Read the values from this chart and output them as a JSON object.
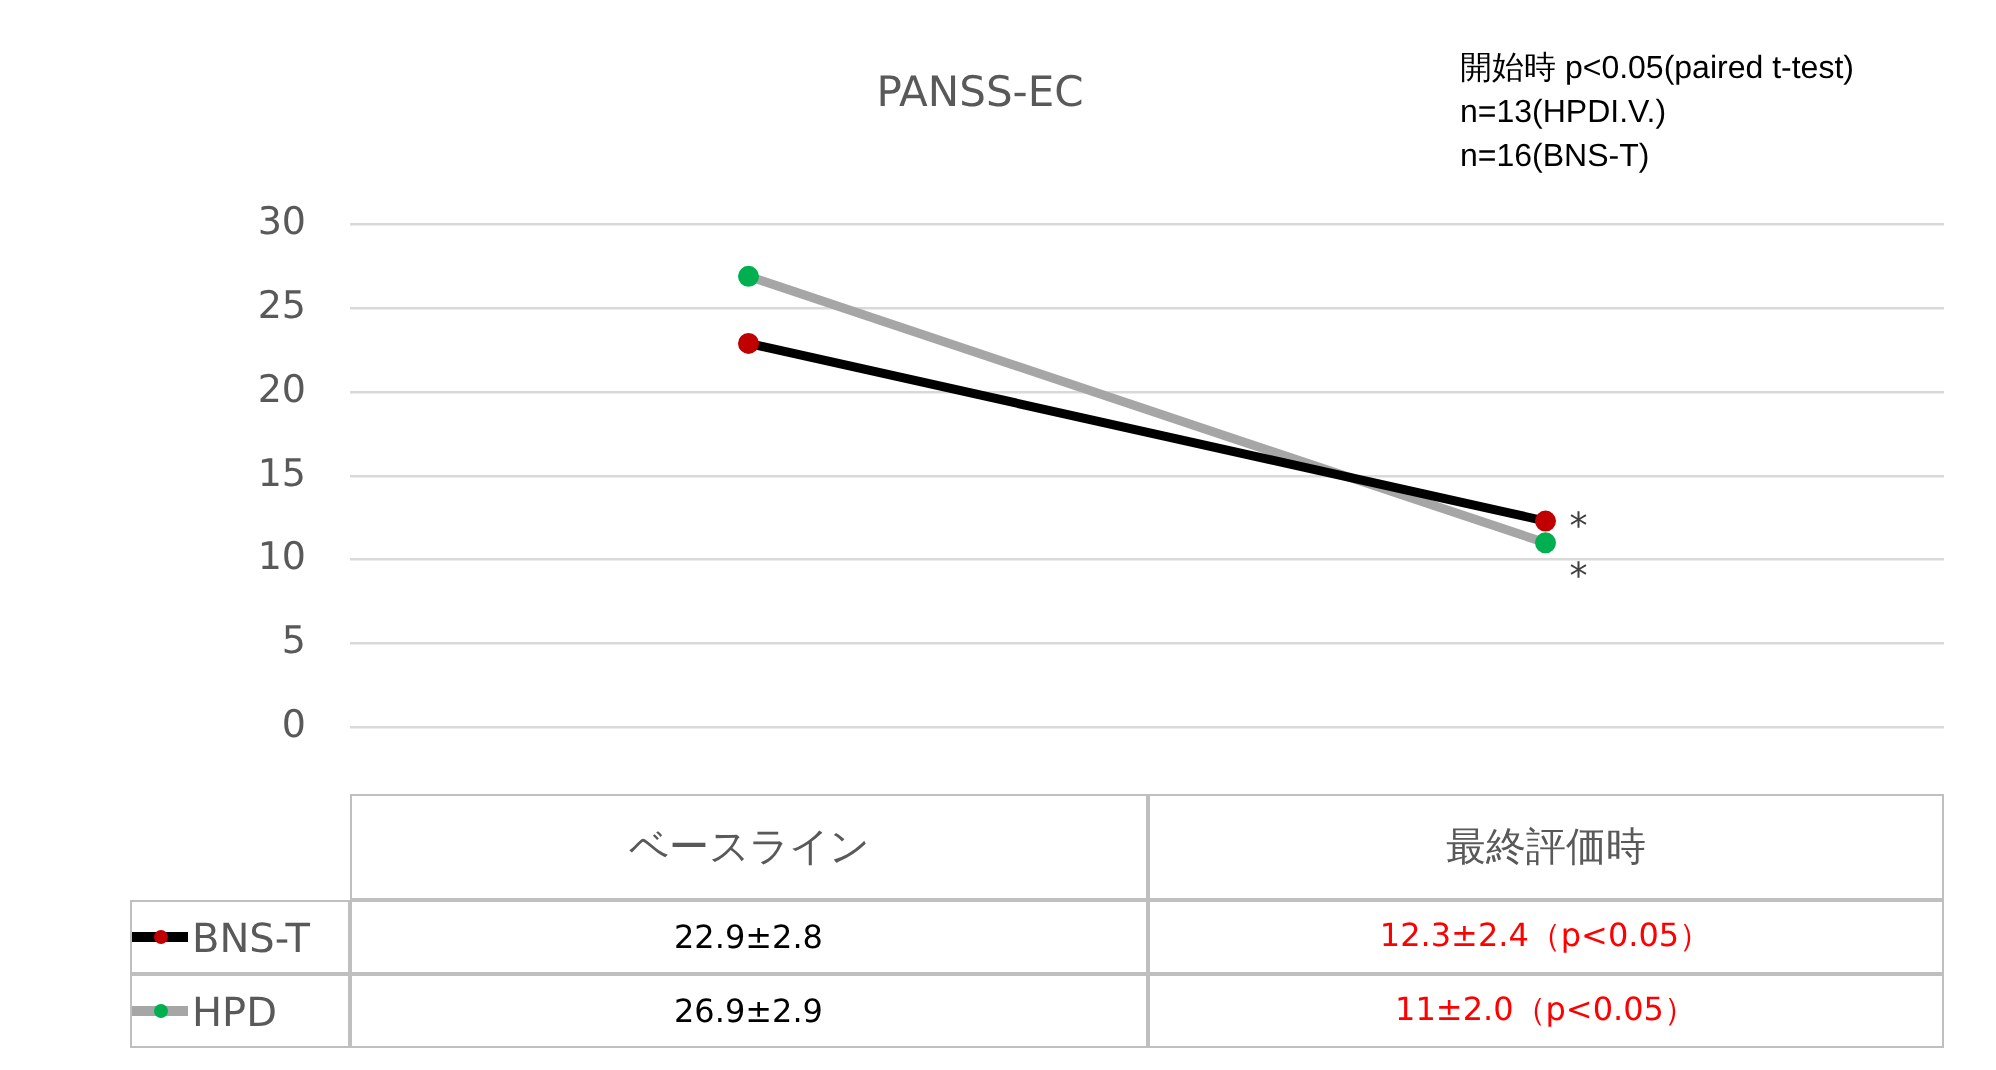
{
  "chart_data": {
    "type": "line",
    "title": "PANSS-EC",
    "categories": [
      "ベースライン",
      "最終評価時"
    ],
    "series": [
      {
        "name": "BNS-T",
        "color": "#000000",
        "colors": [
          "#c00000",
          "#c00000"
        ],
        "values": [
          22.9,
          12.3
        ],
        "value_labels": [
          "22.9±2.8",
          "12.3±2.4（p<0.05）"
        ]
      },
      {
        "name": "HPD",
        "color": "#a6a6a6",
        "colors": [
          "#00b050",
          "#00b050"
        ],
        "values": [
          26.9,
          11
        ],
        "value_labels": [
          "26.9±2.9",
          "11±2.0（p<0.05）"
        ]
      }
    ],
    "ylim": [
      0,
      30
    ],
    "yticks": [
      0,
      5,
      10,
      15,
      20,
      25,
      30
    ],
    "grid": "y",
    "legend": "bottom",
    "marker": "circle",
    "line_style": "solid",
    "annotations": [
      {
        "text": "*",
        "x": "最終評価時",
        "y": 12.3
      },
      {
        "text": "*",
        "x": "最終評価時",
        "y": 11
      },
      "開始時 p<0.05(paired t-test)",
      "n=13(HPDI.V.)",
      "n=16(BNS-T)"
    ]
  }
}
